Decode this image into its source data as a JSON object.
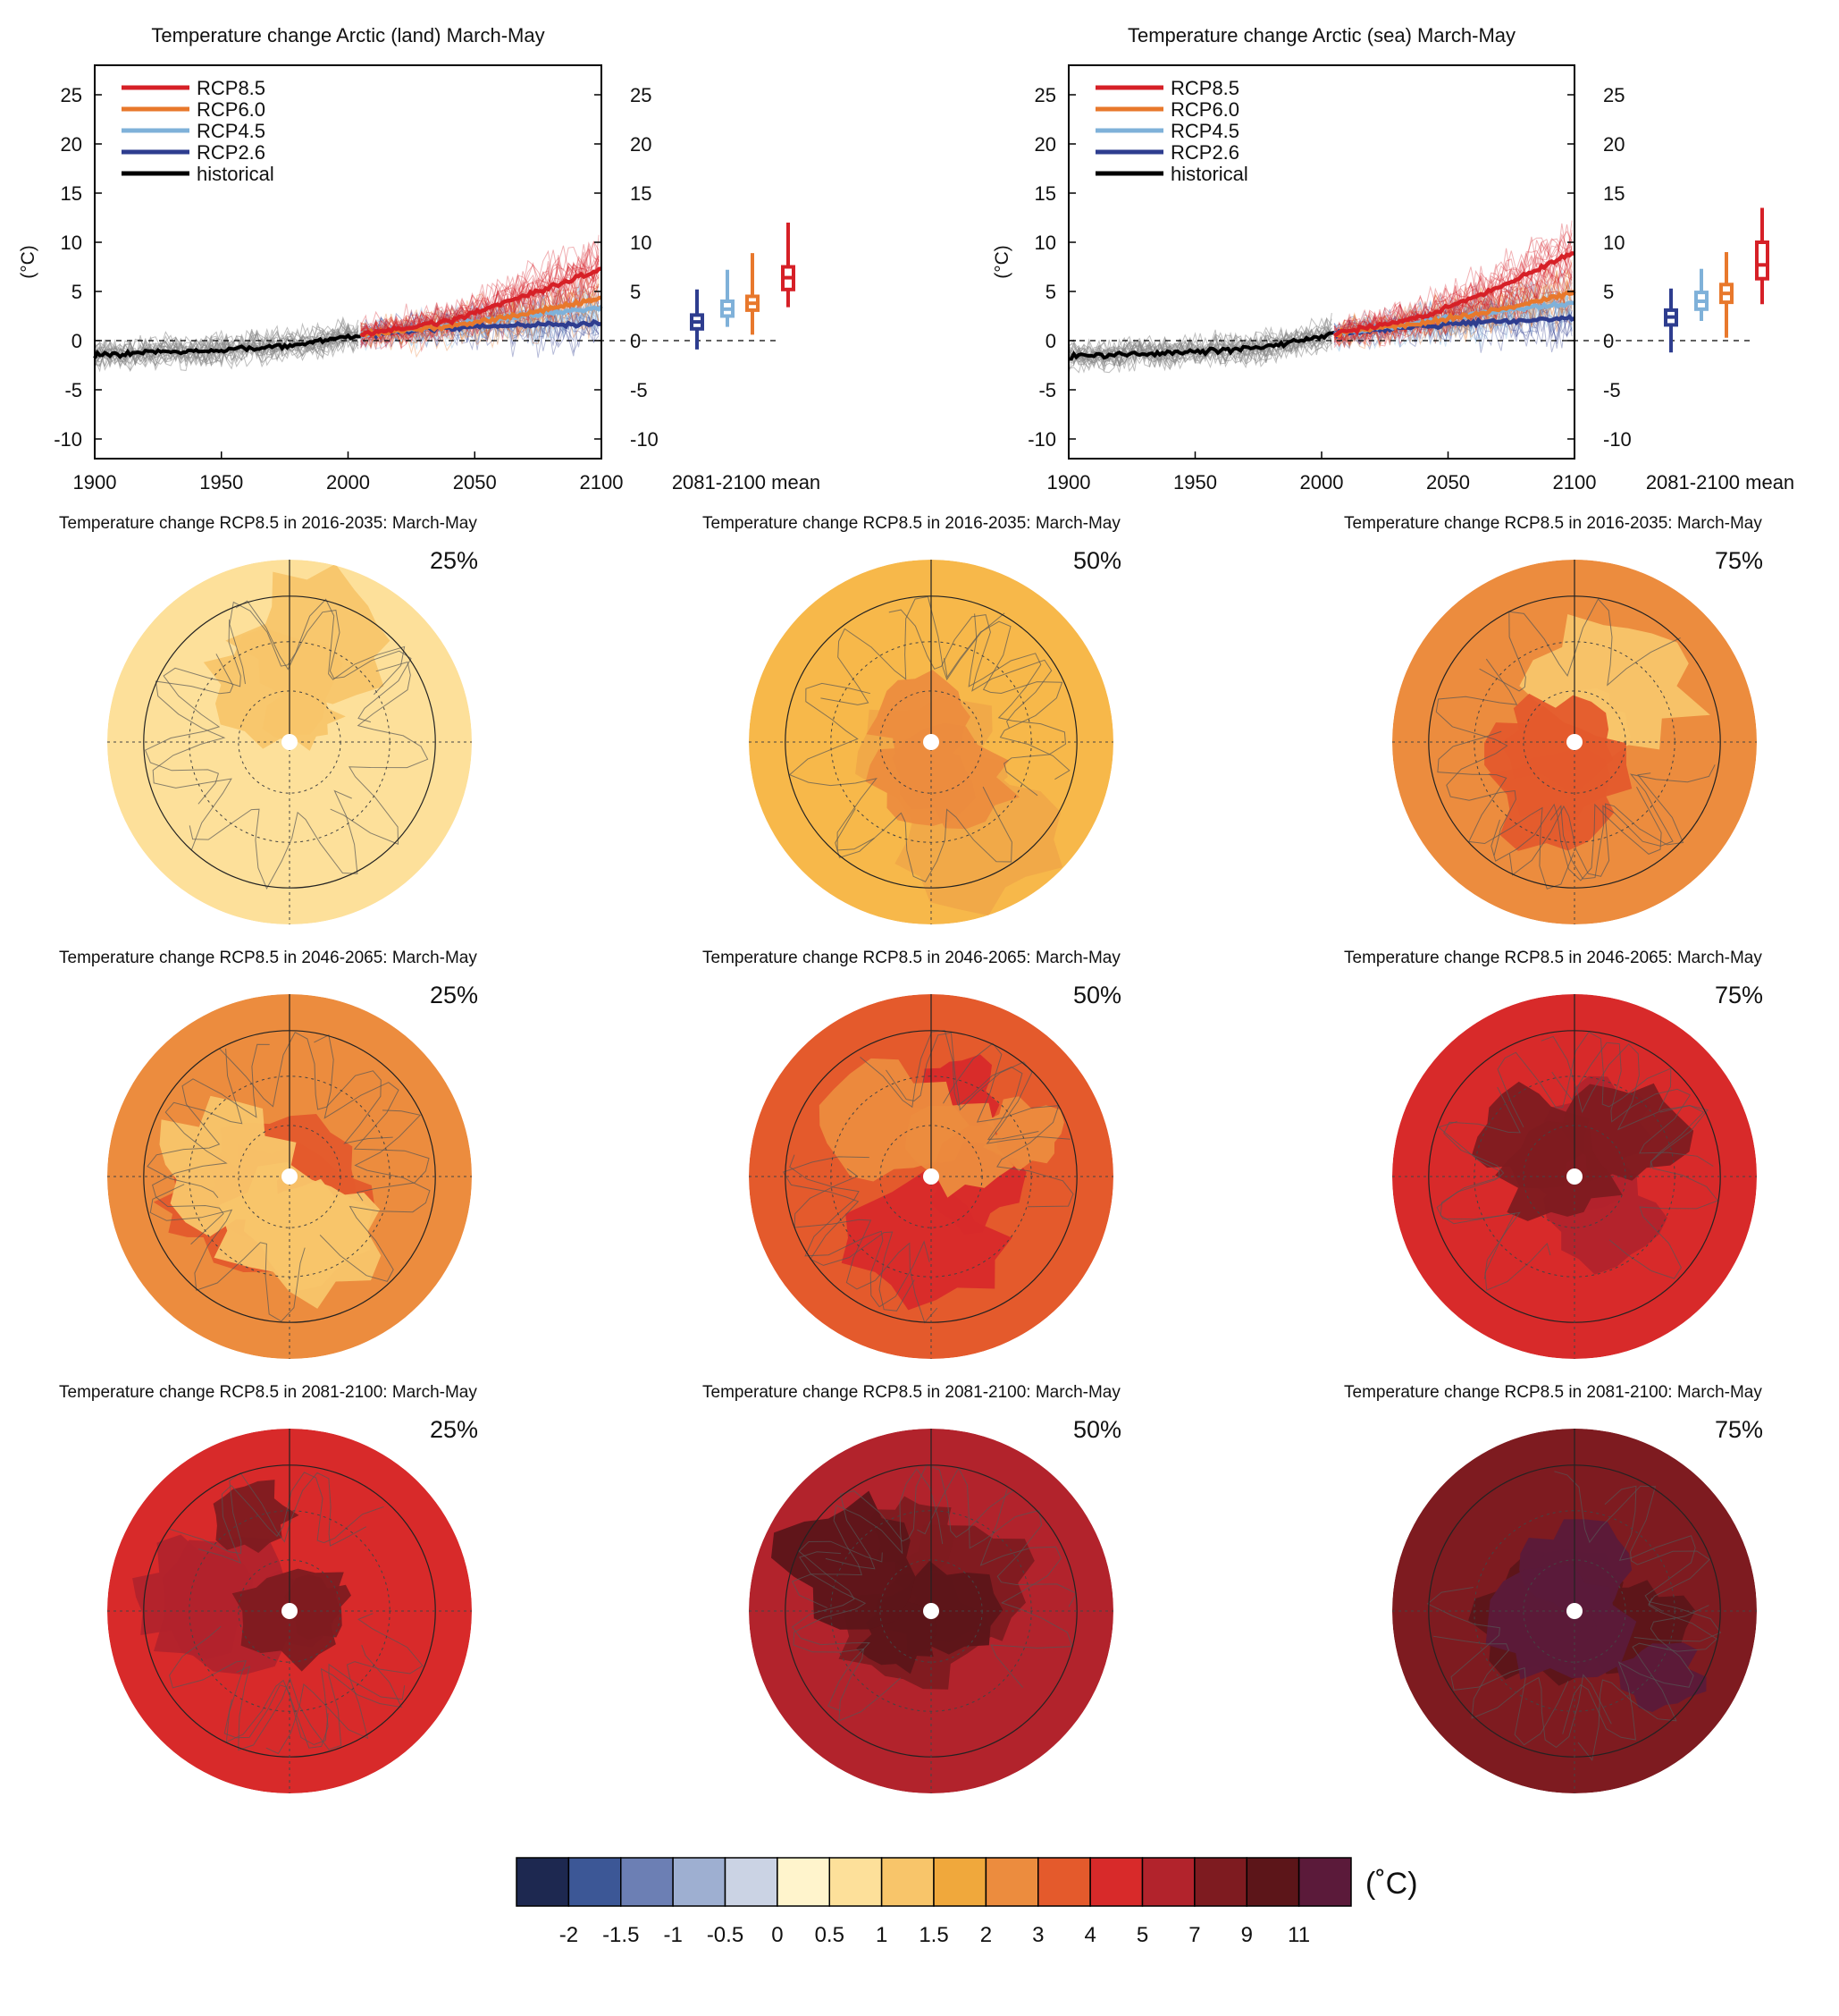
{
  "timeseries": [
    {
      "title": "Temperature change Arctic (land) March-May",
      "ylabel": "(°C)",
      "xlim": [
        1900,
        2100
      ],
      "ylim": [
        -12,
        28
      ],
      "yticks": [
        25,
        20,
        15,
        10,
        5,
        0,
        -5,
        -10
      ],
      "xticks": [
        1900,
        1950,
        2000,
        2050,
        2100
      ],
      "box_label": "2081-2100 mean",
      "legend": [
        {
          "name": "RCP8.5",
          "color": "#d62027"
        },
        {
          "name": "RCP6.0",
          "color": "#e8782c"
        },
        {
          "name": "RCP4.5",
          "color": "#7fb1d9"
        },
        {
          "name": "RCP2.6",
          "color": "#2e3d8f"
        },
        {
          "name": "historical",
          "color": "#000000"
        }
      ],
      "historical": {
        "x": [
          1900,
          1920,
          1940,
          1960,
          1975,
          1985,
          1995,
          2005
        ],
        "y": [
          -1.5,
          -1.2,
          -1.0,
          -0.8,
          -0.6,
          -0.2,
          0.2,
          0.6
        ]
      },
      "scenarios": [
        {
          "name": "RCP2.6",
          "color": "#2e3d8f",
          "x": [
            2005,
            2040,
            2070,
            2100
          ],
          "y": [
            0.6,
            1.3,
            1.6,
            1.7
          ]
        },
        {
          "name": "RCP4.5",
          "color": "#7fb1d9",
          "x": [
            2005,
            2040,
            2070,
            2100
          ],
          "y": [
            0.6,
            1.6,
            2.6,
            3.3
          ]
        },
        {
          "name": "RCP6.0",
          "color": "#e8782c",
          "x": [
            2005,
            2040,
            2070,
            2100
          ],
          "y": [
            0.6,
            1.5,
            2.7,
            4.3
          ]
        },
        {
          "name": "RCP8.5",
          "color": "#d62027",
          "x": [
            2005,
            2040,
            2070,
            2100
          ],
          "y": [
            0.6,
            2.0,
            4.6,
            7.3
          ]
        }
      ],
      "boxes": [
        {
          "name": "RCP2.6",
          "color": "#2e3d8f",
          "min": -0.9,
          "q1": 1.2,
          "median": 1.9,
          "q3": 2.6,
          "max": 5.2
        },
        {
          "name": "RCP4.5",
          "color": "#7fb1d9",
          "min": 1.4,
          "q1": 2.5,
          "median": 3.2,
          "q3": 4.0,
          "max": 7.2
        },
        {
          "name": "RCP6.0",
          "color": "#e8782c",
          "min": 0.6,
          "q1": 3.1,
          "median": 3.8,
          "q3": 4.5,
          "max": 8.9
        },
        {
          "name": "RCP8.5",
          "color": "#d62027",
          "min": 3.4,
          "q1": 5.2,
          "median": 6.4,
          "q3": 7.5,
          "max": 12.0
        }
      ]
    },
    {
      "title": "Temperature change Arctic (sea) March-May",
      "ylabel": "(°C)",
      "xlim": [
        1900,
        2100
      ],
      "ylim": [
        -12,
        28
      ],
      "yticks": [
        25,
        20,
        15,
        10,
        5,
        0,
        -5,
        -10
      ],
      "xticks": [
        1900,
        1950,
        2000,
        2050,
        2100
      ],
      "box_label": "2081-2100 mean",
      "legend": [
        {
          "name": "RCP8.5",
          "color": "#d62027"
        },
        {
          "name": "RCP6.0",
          "color": "#e8782c"
        },
        {
          "name": "RCP4.5",
          "color": "#7fb1d9"
        },
        {
          "name": "RCP2.6",
          "color": "#2e3d8f"
        },
        {
          "name": "historical",
          "color": "#000000"
        }
      ],
      "historical": {
        "x": [
          1900,
          1920,
          1940,
          1960,
          1975,
          1985,
          1995,
          2005
        ],
        "y": [
          -1.6,
          -1.4,
          -1.2,
          -1.0,
          -0.7,
          -0.3,
          0.2,
          0.7
        ]
      },
      "scenarios": [
        {
          "name": "RCP2.6",
          "color": "#2e3d8f",
          "x": [
            2005,
            2040,
            2070,
            2100
          ],
          "y": [
            0.7,
            1.5,
            2.0,
            2.3
          ]
        },
        {
          "name": "RCP4.5",
          "color": "#7fb1d9",
          "x": [
            2005,
            2040,
            2070,
            2100
          ],
          "y": [
            0.7,
            1.9,
            3.0,
            3.8
          ]
        },
        {
          "name": "RCP6.0",
          "color": "#e8782c",
          "x": [
            2005,
            2040,
            2070,
            2100
          ],
          "y": [
            0.7,
            1.8,
            3.1,
            4.9
          ]
        },
        {
          "name": "RCP8.5",
          "color": "#d62027",
          "x": [
            2005,
            2040,
            2070,
            2100
          ],
          "y": [
            0.7,
            2.4,
            5.4,
            9.0
          ]
        }
      ],
      "boxes": [
        {
          "name": "RCP2.6",
          "color": "#2e3d8f",
          "min": -1.2,
          "q1": 1.6,
          "median": 2.4,
          "q3": 3.1,
          "max": 5.3
        },
        {
          "name": "RCP4.5",
          "color": "#7fb1d9",
          "min": 2.0,
          "q1": 3.2,
          "median": 4.0,
          "q3": 4.9,
          "max": 7.3
        },
        {
          "name": "RCP6.0",
          "color": "#e8782c",
          "min": 0.3,
          "q1": 3.9,
          "median": 4.8,
          "q3": 5.7,
          "max": 9.0
        },
        {
          "name": "RCP8.5",
          "color": "#d62027",
          "min": 3.7,
          "q1": 6.3,
          "median": 7.7,
          "q3": 10.0,
          "max": 13.5
        }
      ]
    }
  ],
  "maps": {
    "rows": [
      {
        "title": "Temperature change RCP8.5 in 2016-2035: March-May",
        "panels": [
          {
            "percentile": "25%",
            "bg": "#fde09a",
            "blobs": [
              "#f8c56a"
            ]
          },
          {
            "percentile": "50%",
            "bg": "#f7b84a",
            "blobs": [
              "#f0a848",
              "#ec8c3e"
            ]
          },
          {
            "percentile": "75%",
            "bg": "#ec8c3e",
            "blobs": [
              "#f8c56a",
              "#e45a2c"
            ]
          }
        ]
      },
      {
        "title": "Temperature change RCP8.5 in 2046-2065: March-May",
        "panels": [
          {
            "percentile": "25%",
            "bg": "#ec8c3e",
            "blobs": [
              "#e45a2c",
              "#f8c56a"
            ]
          },
          {
            "percentile": "50%",
            "bg": "#e45a2c",
            "blobs": [
              "#d82a2a",
              "#ec8c3e"
            ]
          },
          {
            "percentile": "75%",
            "bg": "#d82a2a",
            "blobs": [
              "#b2232c",
              "#7e1b20"
            ]
          }
        ]
      },
      {
        "title": "Temperature change RCP8.5 in 2081-2100: March-May",
        "panels": [
          {
            "percentile": "25%",
            "bg": "#d82a2a",
            "blobs": [
              "#b2232c",
              "#7e1b20"
            ]
          },
          {
            "percentile": "50%",
            "bg": "#b2232c",
            "blobs": [
              "#7e1b20",
              "#5c1519"
            ]
          },
          {
            "percentile": "75%",
            "bg": "#7e1b20",
            "blobs": [
              "#5c1519",
              "#5b1a3a"
            ]
          }
        ]
      }
    ]
  },
  "colorbar": {
    "unit": "(˚C)",
    "colors": [
      "#1d2850",
      "#3c5796",
      "#6c7fb4",
      "#9eafd1",
      "#cbd3e4",
      "#fff4cc",
      "#fde09a",
      "#f8c56a",
      "#f0a83c",
      "#ec8c3e",
      "#e45a2c",
      "#d82a2a",
      "#b2232c",
      "#7e1b20",
      "#5c1519",
      "#5b1a3a"
    ],
    "labels": [
      "-2",
      "-1.5",
      "-1",
      "-0.5",
      "0",
      "0.5",
      "1",
      "1.5",
      "2",
      "3",
      "4",
      "5",
      "7",
      "9",
      "11"
    ]
  }
}
